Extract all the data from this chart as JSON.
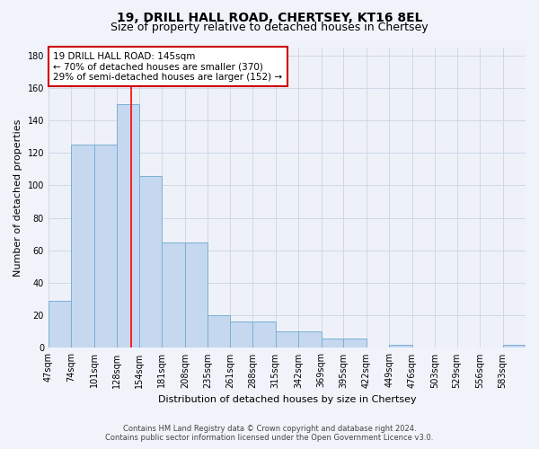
{
  "title_line1": "19, DRILL HALL ROAD, CHERTSEY, KT16 8EL",
  "title_line2": "Size of property relative to detached houses in Chertsey",
  "xlabel": "Distribution of detached houses by size in Chertsey",
  "ylabel": "Number of detached properties",
  "bins": [
    "47sqm",
    "74sqm",
    "101sqm",
    "128sqm",
    "154sqm",
    "181sqm",
    "208sqm",
    "235sqm",
    "261sqm",
    "288sqm",
    "315sqm",
    "342sqm",
    "369sqm",
    "395sqm",
    "422sqm",
    "449sqm",
    "476sqm",
    "503sqm",
    "529sqm",
    "556sqm",
    "583sqm"
  ],
  "bin_edges": [
    47,
    74,
    101,
    128,
    154,
    181,
    208,
    235,
    261,
    288,
    315,
    342,
    369,
    395,
    422,
    449,
    476,
    503,
    529,
    556,
    583,
    610
  ],
  "values": [
    29,
    125,
    125,
    150,
    106,
    65,
    65,
    20,
    16,
    16,
    10,
    10,
    6,
    6,
    0,
    2,
    0,
    0,
    0,
    0,
    2
  ],
  "bar_color": "#c5d8f0",
  "bar_edge_color": "#7aafd4",
  "red_line_x": 145,
  "annotation_line1": "19 DRILL HALL ROAD: 145sqm",
  "annotation_line2": "← 70% of detached houses are smaller (370)",
  "annotation_line3": "29% of semi-detached houses are larger (152) →",
  "annotation_box_color": "#ffffff",
  "annotation_box_edge": "#cc0000",
  "ylim": [
    0,
    185
  ],
  "yticks": [
    0,
    20,
    40,
    60,
    80,
    100,
    120,
    140,
    160,
    180
  ],
  "footer_line1": "Contains HM Land Registry data © Crown copyright and database right 2024.",
  "footer_line2": "Contains public sector information licensed under the Open Government Licence v3.0.",
  "bg_color": "#f0f4fa",
  "plot_bg_color": "#eef2f8",
  "grid_color": "#d0d8e8",
  "title_fontsize": 10,
  "subtitle_fontsize": 9,
  "axis_label_fontsize": 8,
  "tick_fontsize": 7,
  "annotation_fontsize": 7.5,
  "footer_fontsize": 6
}
